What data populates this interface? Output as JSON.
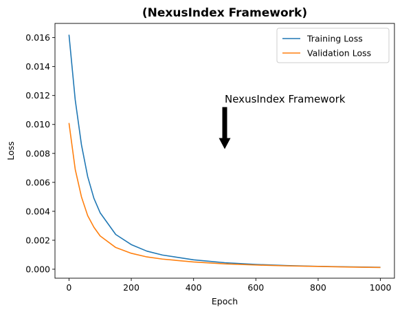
{
  "chart_data": {
    "type": "line",
    "title": "(NexusIndex Framework)",
    "xlabel": "Epoch",
    "ylabel": "Loss",
    "xlim": [
      -45,
      1045
    ],
    "ylim": [
      -0.00062,
      0.01698
    ],
    "xticks": [
      0,
      200,
      400,
      600,
      800,
      1000
    ],
    "yticks": [
      0.0,
      0.002,
      0.004,
      0.006,
      0.008,
      0.01,
      0.012,
      0.014,
      0.016
    ],
    "xtick_labels": [
      "0",
      "200",
      "400",
      "600",
      "800",
      "1000"
    ],
    "ytick_labels": [
      "0.000",
      "0.002",
      "0.004",
      "0.006",
      "0.008",
      "0.010",
      "0.012",
      "0.014",
      "0.016"
    ],
    "grid": false,
    "legend": "upper right",
    "x": [
      0,
      20,
      40,
      60,
      80,
      100,
      150,
      200,
      250,
      300,
      400,
      500,
      600,
      700,
      800,
      900,
      1000
    ],
    "series": [
      {
        "name": "Training Loss",
        "color": "#1f77b4",
        "values": [
          0.0162,
          0.0117,
          0.0086,
          0.0064,
          0.0049,
          0.0039,
          0.0024,
          0.0017,
          0.00125,
          0.00098,
          0.00065,
          0.00045,
          0.00033,
          0.00025,
          0.0002,
          0.00016,
          0.00013
        ]
      },
      {
        "name": "Validation Loss",
        "color": "#ff7f0e",
        "values": [
          0.0101,
          0.0069,
          0.005,
          0.0037,
          0.0029,
          0.0023,
          0.0015,
          0.0011,
          0.00085,
          0.0007,
          0.0005,
          0.00037,
          0.00029,
          0.00023,
          0.00019,
          0.00015,
          0.00012
        ]
      }
    ],
    "annotation": {
      "text": "NexusIndex Framework",
      "text_x": 500,
      "text_y": 0.0115,
      "arrow_x": 500,
      "arrow_from_y": 0.0112,
      "arrow_to_y": 0.0083
    }
  }
}
